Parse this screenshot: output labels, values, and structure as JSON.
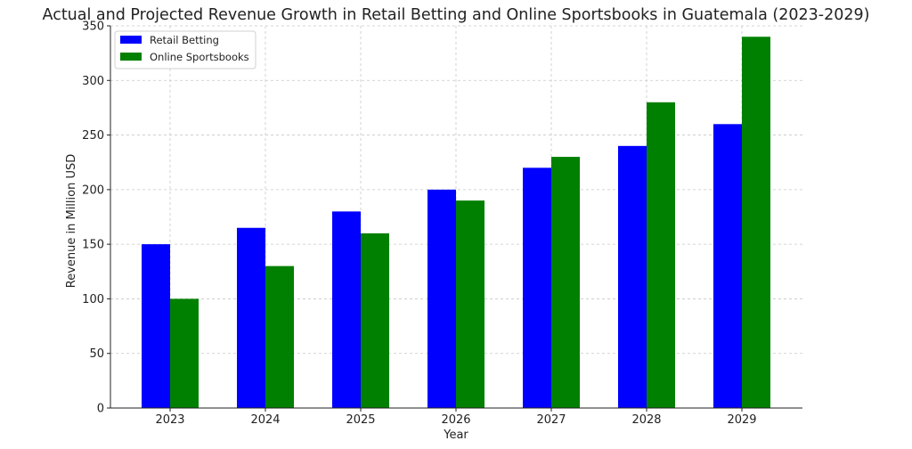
{
  "chart_data": {
    "type": "bar",
    "title": "Actual and Projected Revenue Growth in Retail Betting and Online Sportsbooks in Guatemala (2023-2029)",
    "xlabel": "Year",
    "ylabel": "Revenue in Million USD",
    "categories": [
      "2023",
      "2024",
      "2025",
      "2026",
      "2027",
      "2028",
      "2029"
    ],
    "series": [
      {
        "name": "Retail Betting",
        "color": "#0000ff",
        "values": [
          150,
          165,
          180,
          200,
          220,
          240,
          260
        ]
      },
      {
        "name": "Online Sportsbooks",
        "color": "#008000",
        "values": [
          100,
          130,
          160,
          190,
          230,
          280,
          340
        ]
      }
    ],
    "ylim": [
      0,
      350
    ],
    "yticks": [
      0,
      50,
      100,
      150,
      200,
      250,
      300,
      350
    ],
    "grid": true,
    "legend_position": "top-left"
  }
}
